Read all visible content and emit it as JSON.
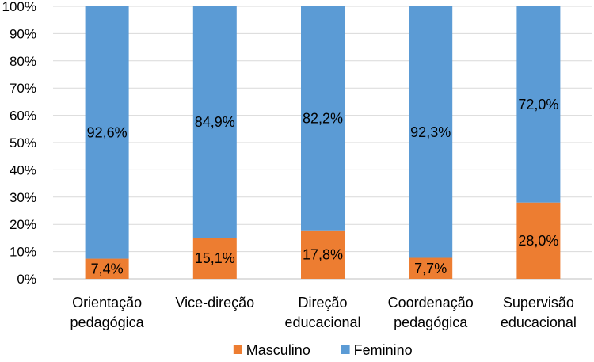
{
  "chart_data": {
    "type": "bar",
    "stacked": true,
    "percent": true,
    "categories": [
      [
        "Orientação",
        "pedagógica"
      ],
      [
        "Vice-direção"
      ],
      [
        "Direção",
        "educacional"
      ],
      [
        "Coordenação",
        "pedagógica"
      ],
      [
        "Supervisão",
        "educacional"
      ]
    ],
    "series": [
      {
        "name": "Masculino",
        "color": "#ED7D31",
        "values": [
          7.4,
          15.1,
          17.8,
          7.7,
          28.0
        ],
        "labels": [
          "7,4%",
          "15,1%",
          "17,8%",
          "7,7%",
          "28,0%"
        ]
      },
      {
        "name": "Feminino",
        "color": "#5B9BD5",
        "values": [
          92.6,
          84.9,
          82.2,
          92.3,
          72.0
        ],
        "labels": [
          "92,6%",
          "84,9%",
          "82,2%",
          "92,3%",
          "72,0%"
        ]
      }
    ],
    "ylim": [
      0,
      100
    ],
    "yticks": [
      "0%",
      "10%",
      "20%",
      "30%",
      "40%",
      "50%",
      "60%",
      "70%",
      "80%",
      "90%",
      "100%"
    ],
    "grid": true,
    "legend": "bottom",
    "title": "",
    "xlabel": "",
    "ylabel": ""
  }
}
